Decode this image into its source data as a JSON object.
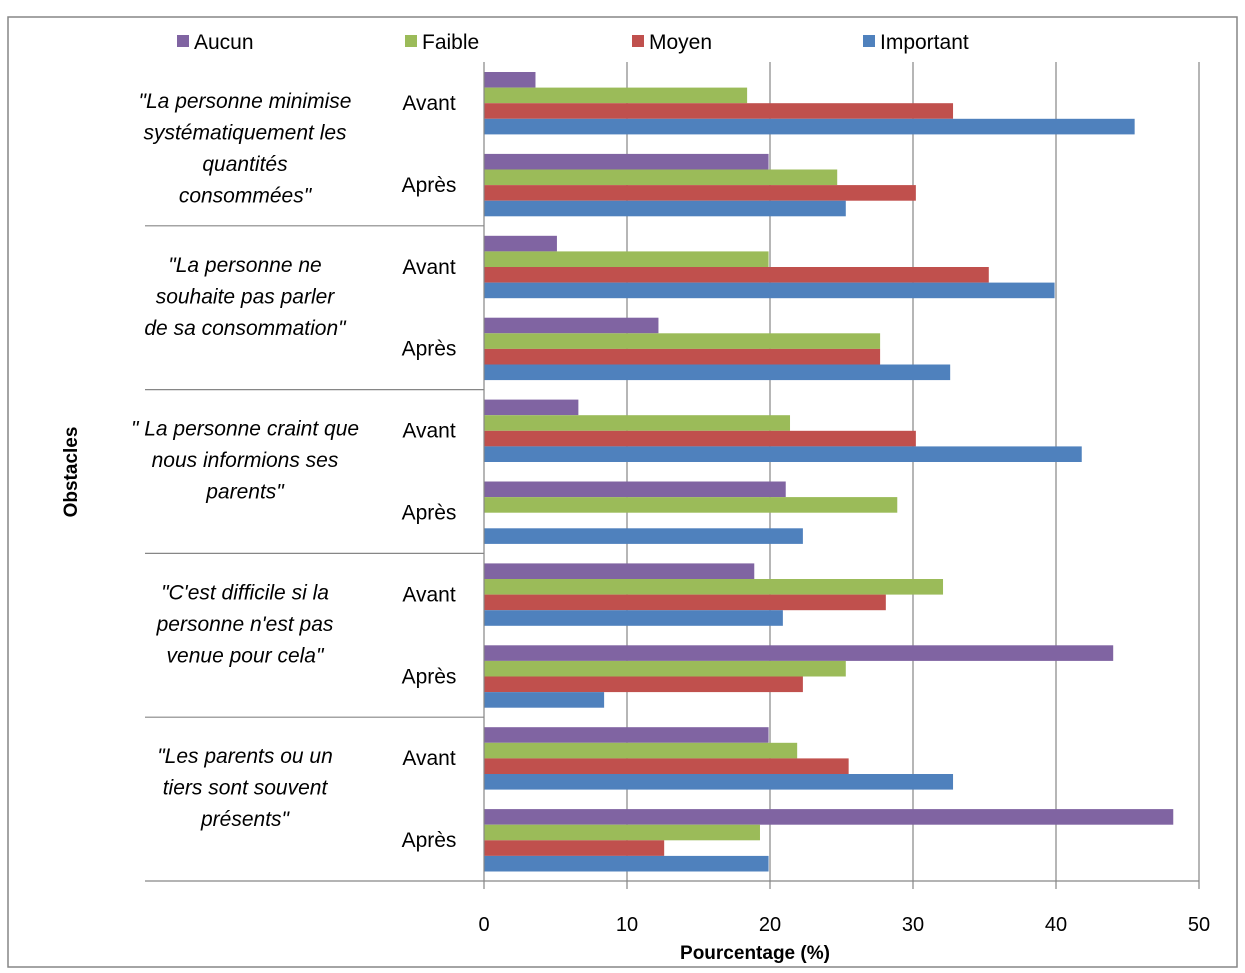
{
  "chart_data": {
    "type": "bar",
    "orientation": "horizontal",
    "xlabel": "Pourcentage (%)",
    "ylabel": "Obstacles",
    "xlim": [
      0,
      50
    ],
    "xticks": [
      0,
      10,
      20,
      30,
      40,
      50
    ],
    "grid": "vertical",
    "legend_position": "top",
    "series": [
      {
        "name": "Aucun",
        "color": "#8064A2"
      },
      {
        "name": "Faible",
        "color": "#9BBB59"
      },
      {
        "name": "Moyen",
        "color": "#C0504D"
      },
      {
        "name": "Important",
        "color": "#4F81BD"
      }
    ],
    "groups": [
      {
        "label_lines": [
          "\"La personne minimise",
          "systématiquement les",
          "quantités",
          "consommées\""
        ],
        "rows": [
          {
            "period": "Avant",
            "values": [
              3.6,
              18.4,
              32.8,
              45.5
            ]
          },
          {
            "period": "Après",
            "values": [
              19.9,
              24.7,
              30.2,
              25.3
            ]
          }
        ]
      },
      {
        "label_lines": [
          "\"La personne ne",
          "souhaite pas parler",
          "de sa consommation\""
        ],
        "rows": [
          {
            "period": "Avant",
            "values": [
              5.1,
              19.9,
              35.3,
              39.9
            ]
          },
          {
            "period": "Après",
            "values": [
              12.2,
              27.7,
              27.7,
              32.6
            ]
          }
        ]
      },
      {
        "label_lines": [
          "\" La personne craint que",
          "nous informions ses",
          "parents\""
        ],
        "rows": [
          {
            "period": "Avant",
            "values": [
              6.6,
              21.4,
              30.2,
              41.8
            ]
          },
          {
            "period": "Après",
            "values": [
              21.1,
              28.9,
              0,
              22.3
            ]
          }
        ]
      },
      {
        "label_lines": [
          "\"C'est difficile si la",
          "personne n'est pas",
          "venue pour cela\""
        ],
        "rows": [
          {
            "period": "Avant",
            "values": [
              18.9,
              32.1,
              28.1,
              20.9
            ]
          },
          {
            "period": "Après",
            "values": [
              44.0,
              25.3,
              22.3,
              8.4
            ]
          }
        ]
      },
      {
        "label_lines": [
          "\"Les parents ou un",
          "tiers sont souvent",
          "présents\""
        ],
        "rows": [
          {
            "period": "Avant",
            "values": [
              19.9,
              21.9,
              25.5,
              32.8
            ]
          },
          {
            "period": "Après",
            "values": [
              48.2,
              19.3,
              12.6,
              19.9
            ]
          }
        ]
      }
    ]
  }
}
